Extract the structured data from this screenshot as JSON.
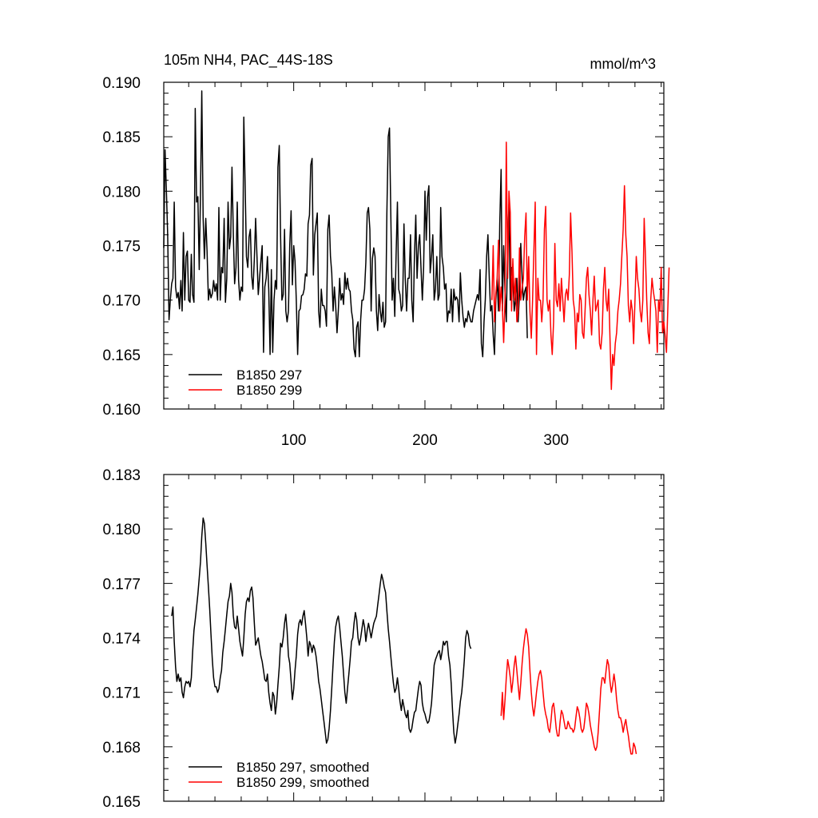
{
  "chart_data": [
    {
      "type": "line",
      "title": "105m NH4, PAC_44S-18S",
      "units": "mmol/m^3",
      "xlim": [
        1,
        382
      ],
      "ylim": [
        0.16,
        0.19
      ],
      "xticks": [
        100,
        200,
        300
      ],
      "yticks": [
        "0.160",
        "0.165",
        "0.170",
        "0.175",
        "0.180",
        "0.185",
        "0.190"
      ],
      "legend": "bottom-left",
      "series": [
        {
          "name": "B1850 297",
          "color": "#000000",
          "x_start": 1,
          "values": [
            0.1748,
            0.1838,
            0.18,
            0.176,
            0.1682,
            0.17,
            0.1715,
            0.172,
            0.179,
            0.1712,
            0.1702,
            0.1707,
            0.1692,
            0.1718,
            0.169,
            0.1762,
            0.17,
            0.174,
            0.1745,
            0.17,
            0.1698,
            0.1742,
            0.1705,
            0.1698,
            0.1876,
            0.179,
            0.1795,
            0.1728,
            0.1798,
            0.1892,
            0.1775,
            0.1738,
            0.1775,
            0.1745,
            0.17,
            0.171,
            0.1702,
            0.1706,
            0.1718,
            0.1708,
            0.1715,
            0.17,
            0.1785,
            0.17,
            0.173,
            0.1725,
            0.1775,
            0.1698,
            0.172,
            0.179,
            0.1747,
            0.1758,
            0.1822,
            0.176,
            0.1715,
            0.173,
            0.179,
            0.1718,
            0.17,
            0.1712,
            0.1708,
            0.1868,
            0.1805,
            0.174,
            0.173,
            0.1758,
            0.1765,
            0.1722,
            0.171,
            0.1738,
            0.1775,
            0.174,
            0.1705,
            0.172,
            0.1736,
            0.175,
            0.1652,
            0.1712,
            0.172,
            0.174,
            0.171,
            0.165,
            0.1728,
            0.1652,
            0.17,
            0.1718,
            0.171,
            0.1822,
            0.1842,
            0.176,
            0.17,
            0.1705,
            0.1765,
            0.169,
            0.168,
            0.169,
            0.175,
            0.1782,
            0.1714,
            0.175,
            0.1736,
            0.17,
            0.165,
            0.169,
            0.1692,
            0.1704,
            0.1705,
            0.171,
            0.1724,
            0.1722,
            0.177,
            0.1778,
            0.1824,
            0.183,
            0.1723,
            0.176,
            0.177,
            0.178,
            0.169,
            0.1675,
            0.171,
            0.1695,
            0.1695,
            0.169,
            0.1676,
            0.1765,
            0.1778,
            0.174,
            0.1725,
            0.169,
            0.1712,
            0.1695,
            0.167,
            0.169,
            0.172,
            0.17,
            0.1706,
            0.1696,
            0.1725,
            0.171,
            0.172,
            0.171,
            0.1708,
            0.169,
            0.1682,
            0.1655,
            0.1648,
            0.1675,
            0.168,
            0.1648,
            0.1682,
            0.17,
            0.17,
            0.171,
            0.1735,
            0.178,
            0.1785,
            0.1765,
            0.169,
            0.1738,
            0.1748,
            0.174,
            0.169,
            0.1672,
            0.1705,
            0.169,
            0.168,
            0.1698,
            0.1675,
            0.168,
            0.178,
            0.185,
            0.1858,
            0.178,
            0.17,
            0.172,
            0.1685,
            0.174,
            0.179,
            0.171,
            0.1705,
            0.169,
            0.1695,
            0.177,
            0.172,
            0.169,
            0.172,
            0.172,
            0.176,
            0.17,
            0.168,
            0.174,
            0.1778,
            0.172,
            0.175,
            0.176,
            0.173,
            0.17,
            0.173,
            0.18,
            0.1755,
            0.1795,
            0.1805,
            0.1725,
            0.174,
            0.176,
            0.17,
            0.171,
            0.174,
            0.17,
            0.1705,
            0.1785,
            0.174,
            0.173,
            0.171,
            0.1715,
            0.168,
            0.169,
            0.1688,
            0.171,
            0.168,
            0.171,
            0.17,
            0.1703,
            0.17,
            0.168,
            0.1725,
            0.17,
            0.1685,
            0.1675,
            0.1683,
            0.168,
            0.169,
            0.1685,
            0.168,
            0.168,
            0.169,
            0.1695,
            0.17,
            0.1705,
            0.17,
            0.1728,
            0.166,
            0.1648,
            0.168,
            0.17,
            0.174,
            0.176,
            0.172,
            0.169,
            0.1695,
            0.1668,
            0.165,
            0.17,
            0.172,
            0.169,
            0.177,
            0.182,
            0.169,
            0.175,
            0.1708,
            0.168,
            0.175,
            0.1788,
            0.17,
            0.173,
            0.172,
            0.169,
            0.17,
            0.172,
            0.168,
            0.1705,
            0.1752,
            0.172,
            0.17,
            0.1708,
            0.1712,
            0.1665
          ]
        },
        {
          "name": "B1850 299",
          "color": "#ff0000",
          "x_start": 251,
          "values": [
            0.17,
            0.175,
            0.168,
            0.1706,
            0.172,
            0.1755,
            0.169,
            0.1712,
            0.1694,
            0.1661,
            0.17,
            0.1845,
            0.172,
            0.18,
            0.178,
            0.169,
            0.1738,
            0.17,
            0.172,
            0.168,
            0.169,
            0.1748,
            0.17,
            0.171,
            0.172,
            0.1758,
            0.178,
            0.17,
            0.174,
            0.169,
            0.1665,
            0.17,
            0.1745,
            0.179,
            0.165,
            0.172,
            0.17,
            0.17,
            0.168,
            0.17,
            0.1765,
            0.1786,
            0.17,
            0.169,
            0.17,
            0.1668,
            0.165,
            0.168,
            0.1752,
            0.17,
            0.1694,
            0.1715,
            0.169,
            0.172,
            0.17,
            0.168,
            0.1705,
            0.171,
            0.17,
            0.1723,
            0.178,
            0.1745,
            0.17,
            0.169,
            0.1655,
            0.1688,
            0.168,
            0.1705,
            0.17,
            0.167,
            0.1665,
            0.169,
            0.172,
            0.173,
            0.1705,
            0.169,
            0.1668,
            0.17,
            0.1722,
            0.169,
            0.1695,
            0.17,
            0.166,
            0.1655,
            0.167,
            0.171,
            0.173,
            0.17,
            0.169,
            0.171,
            0.1665,
            0.1618,
            0.165,
            0.164,
            0.166,
            0.167,
            0.169,
            0.17,
            0.1715,
            0.174,
            0.1765,
            0.1805,
            0.176,
            0.174,
            0.1695,
            0.168,
            0.17,
            0.169,
            0.166,
            0.17,
            0.174,
            0.172,
            0.171,
            0.169,
            0.168,
            0.17,
            0.1775,
            0.174,
            0.17,
            0.167,
            0.166,
            0.17,
            0.172,
            0.1708,
            0.17,
            0.169,
            0.1652,
            0.17,
            0.169,
            0.173,
            0.167,
            0.168,
            0.1668,
            0.1652,
            0.169,
            0.173
          ]
        }
      ]
    },
    {
      "type": "line",
      "title": "",
      "xlim": [
        1,
        382
      ],
      "ylim": [
        0.165,
        0.183
      ],
      "yticks": [
        "0.165",
        "0.168",
        "0.171",
        "0.174",
        "0.177",
        "0.180",
        "0.183"
      ],
      "legend": "bottom-left",
      "series": [
        {
          "name": "B1850 297, smoothed",
          "color": "#000000",
          "x_start": 7,
          "values": [
            0.1752,
            0.1757,
            0.1738,
            0.1724,
            0.1716,
            0.172,
            0.1716,
            0.1718,
            0.171,
            0.1707,
            0.1713,
            0.1716,
            0.1715,
            0.1716,
            0.1713,
            0.1718,
            0.1732,
            0.1744,
            0.175,
            0.1757,
            0.1764,
            0.1773,
            0.1782,
            0.1796,
            0.1806,
            0.1803,
            0.1792,
            0.178,
            0.1768,
            0.1756,
            0.1742,
            0.1728,
            0.1718,
            0.1713,
            0.1713,
            0.171,
            0.1712,
            0.1718,
            0.1722,
            0.1732,
            0.1738,
            0.1745,
            0.1753,
            0.176,
            0.1763,
            0.177,
            0.1765,
            0.1752,
            0.1746,
            0.1745,
            0.1752,
            0.1745,
            0.1738,
            0.1734,
            0.173,
            0.174,
            0.1753,
            0.176,
            0.1762,
            0.176,
            0.1766,
            0.1768,
            0.1762,
            0.1748,
            0.1736,
            0.1738,
            0.174,
            0.1735,
            0.173,
            0.1727,
            0.1722,
            0.1717,
            0.1716,
            0.172,
            0.171,
            0.1704,
            0.17,
            0.171,
            0.1708,
            0.1698,
            0.1704,
            0.1714,
            0.1724,
            0.1737,
            0.1735,
            0.174,
            0.1748,
            0.1753,
            0.1744,
            0.173,
            0.1726,
            0.1716,
            0.1706,
            0.1712,
            0.1722,
            0.173,
            0.1742,
            0.1748,
            0.175,
            0.1747,
            0.1752,
            0.1755,
            0.1748,
            0.174,
            0.173,
            0.1738,
            0.1736,
            0.1732,
            0.1736,
            0.1734,
            0.173,
            0.1724,
            0.1716,
            0.1712,
            0.1706,
            0.17,
            0.1694,
            0.1688,
            0.1682,
            0.1684,
            0.169,
            0.17,
            0.1712,
            0.1726,
            0.1738,
            0.1746,
            0.175,
            0.1752,
            0.1746,
            0.1738,
            0.173,
            0.172,
            0.171,
            0.1704,
            0.1712,
            0.172,
            0.1728,
            0.1738,
            0.174,
            0.1748,
            0.1754,
            0.175,
            0.174,
            0.1736,
            0.174,
            0.1745,
            0.175,
            0.1746,
            0.1738,
            0.1744,
            0.1748,
            0.1744,
            0.174,
            0.1744,
            0.1748,
            0.175,
            0.1752,
            0.1758,
            0.1764,
            0.177,
            0.1775,
            0.1772,
            0.1768,
            0.1765,
            0.1755,
            0.1745,
            0.1738,
            0.173,
            0.1722,
            0.1715,
            0.171,
            0.1712,
            0.1718,
            0.1712,
            0.1705,
            0.17,
            0.1706,
            0.1702,
            0.1698,
            0.1696,
            0.17,
            0.169,
            0.1688,
            0.169,
            0.1695,
            0.1699,
            0.17,
            0.1706,
            0.1712,
            0.1716,
            0.1714,
            0.1704,
            0.17,
            0.1698,
            0.1695,
            0.1693,
            0.1694,
            0.1698,
            0.1704,
            0.1714,
            0.1725,
            0.1728,
            0.173,
            0.1732,
            0.1733,
            0.1728,
            0.1732,
            0.1738,
            0.1736,
            0.1738,
            0.1738,
            0.173,
            0.1725,
            0.1715,
            0.17,
            0.1688,
            0.1682,
            0.1686,
            0.1692,
            0.1698,
            0.1705,
            0.171,
            0.1718,
            0.1728,
            0.174,
            0.1744,
            0.1742,
            0.1736,
            0.1734
          ]
        },
        {
          "name": "B1850 299, smoothed",
          "color": "#ff0000",
          "x_start": 258,
          "values": [
            0.1697,
            0.171,
            0.1695,
            0.1706,
            0.1718,
            0.1728,
            0.1724,
            0.1718,
            0.171,
            0.1716,
            0.1725,
            0.173,
            0.1722,
            0.1714,
            0.1706,
            0.1715,
            0.1726,
            0.1734,
            0.174,
            0.1745,
            0.1742,
            0.1735,
            0.1722,
            0.171,
            0.1702,
            0.1697,
            0.1703,
            0.171,
            0.1716,
            0.172,
            0.1722,
            0.1718,
            0.171,
            0.1702,
            0.1698,
            0.1695,
            0.169,
            0.1688,
            0.1694,
            0.1702,
            0.1704,
            0.1698,
            0.169,
            0.1686,
            0.1686,
            0.1694,
            0.17,
            0.1698,
            0.1694,
            0.169,
            0.169,
            0.1694,
            0.1692,
            0.169,
            0.169,
            0.1688,
            0.169,
            0.1696,
            0.1702,
            0.17,
            0.1696,
            0.169,
            0.1688,
            0.169,
            0.1696,
            0.1704,
            0.1702,
            0.1698,
            0.1692,
            0.1688,
            0.1684,
            0.168,
            0.1678,
            0.168,
            0.1688,
            0.17,
            0.1712,
            0.1718,
            0.1718,
            0.1715,
            0.1722,
            0.1728,
            0.1725,
            0.1716,
            0.171,
            0.1714,
            0.172,
            0.1715,
            0.1706,
            0.17,
            0.1696,
            0.1696,
            0.1693,
            0.1688,
            0.1692,
            0.1695,
            0.169,
            0.1686,
            0.168,
            0.1676,
            0.1676,
            0.1682,
            0.168,
            0.1676
          ]
        }
      ]
    }
  ]
}
